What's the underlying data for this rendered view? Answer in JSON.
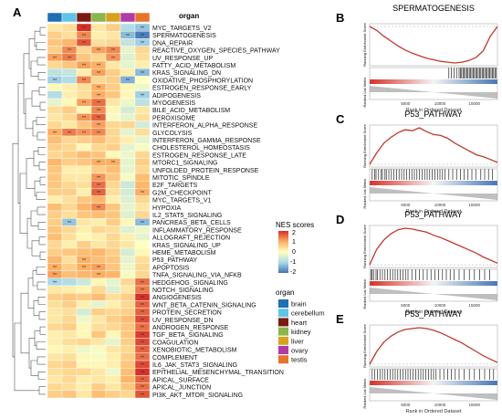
{
  "panel_labels": {
    "A": "A",
    "B": "B",
    "C": "C",
    "D": "D",
    "E": "E"
  },
  "heatmap": {
    "organ_header": "organ",
    "legend_title": "NES  scores",
    "legend_ticks": [
      "2",
      "1",
      "0",
      "-1",
      "-2"
    ],
    "organ_legend_title": "organ",
    "significance_mark": "**"
  },
  "colors": {
    "high": "#d73027",
    "mid_high": "#fdae61",
    "neutral": "#ffffbf",
    "mid_low": "#abd9e9",
    "low": "#4575b4",
    "gsea_curve": "#c0392b",
    "barcode": "#000000",
    "ranked_metric_fill": "#bfbfbf"
  },
  "chart_data": [
    {
      "type": "heatmap",
      "title": "",
      "columns": [
        "brain",
        "cerebellum",
        "heart",
        "kidney",
        "liver",
        "ovary",
        "testis"
      ],
      "column_colors": [
        "#1f6fb4",
        "#5fc4e8",
        "#7b1a12",
        "#8ab64b",
        "#d7a21e",
        "#b03aa6",
        "#e8732a"
      ],
      "rows": [
        "MYC_TARGETS_V2",
        "SPERMATOGENESIS",
        "DNA_REPAIR",
        "REACTIVE_OXYGEN_SPECIES_PATHWAY",
        "UV_RESPONSE_UP",
        "FATTY_ACID_METABOLISM",
        "KRAS_SIGNALING_DN",
        "OXIDATIVE_PHOSPHORYLATION",
        "ESTROGEN_RESPONSE_EARLY",
        "ADIPOGENESIS",
        "MYOGENESIS",
        "BILE_ACID_METABOLISM",
        "PEROXISOME",
        "INTERFERON_ALPHA_RESPONSE",
        "GLYCOLYSIS",
        "INTERFERON_GAMMA_RESPONSE",
        "CHOLESTEROL_HOMEOSTASIS",
        "ESTROGEN_RESPONSE_LATE",
        "MTORC1_SIGNALING",
        "UNFOLDED_PROTEIN_RESPONSE",
        "MITOTIC_SPINDLE",
        "E2F_TARGETS",
        "G2M_CHECKPOINT",
        "MYC_TARGETS_V1",
        "HYPOXIA",
        "IL2_STAT5_SIGNALING",
        "PANCREAS_BETA_CELLS",
        "INFLAMMATORY_RESPONSE",
        "ALLOGRAFT_REJECTION",
        "KRAS_SIGNALING_UP",
        "HEME_METABOLISM",
        "P53_PATHWAY",
        "APOPTOSIS",
        "TNFA_SIGNALING_VIA_NFKB",
        "HEDGEHOG_SIGNALING",
        "NOTCH_SIGNALING",
        "ANGIOGENESIS",
        "WNT_BETA_CATENIN_SIGNALING",
        "PROTEIN_SECRETION",
        "UV_RESPONSE_DN",
        "ANDROGEN_RESPONSE",
        "TGF_BETA_SIGNALING",
        "COAGULATION",
        "XENOBIOTIC_METABOLISM",
        "COMPLEMENT",
        "IL6_JAK_STAT3_SIGNALING",
        "EPITHELIAL_MESENCHYMAL_TRANSITION",
        "APICAL_SURFACE",
        "APICAL_JUNCTION",
        "PI3K_AKT_MTOR_SIGNALING"
      ],
      "values": [
        [
          0.3,
          0.4,
          2.0,
          0.3,
          0.6,
          -0.9,
          -1.2
        ],
        [
          0.6,
          0.4,
          1.3,
          0.2,
          0.3,
          -1.3,
          -1.9
        ],
        [
          0.7,
          0.9,
          1.7,
          0.4,
          0.5,
          -0.7,
          -1.1
        ],
        [
          0.6,
          1.3,
          0.5,
          1.1,
          1.3,
          -0.3,
          0.5
        ],
        [
          1.1,
          1.4,
          0.7,
          0.5,
          1.2,
          -0.4,
          0.4
        ],
        [
          0.5,
          0.7,
          1.1,
          1.0,
          0.3,
          -0.3,
          0.2
        ],
        [
          -0.8,
          -0.7,
          0.2,
          1.1,
          0.6,
          0.2,
          -1.3
        ],
        [
          -1.1,
          -0.9,
          1.3,
          0.5,
          0.6,
          -1.4,
          0.0
        ],
        [
          0.1,
          0.2,
          0.4,
          1.0,
          0.6,
          0.1,
          -0.2
        ],
        [
          -0.9,
          0.2,
          0.4,
          1.0,
          0.7,
          0.1,
          -1.1
        ],
        [
          -0.3,
          0.1,
          1.1,
          1.5,
          0.3,
          -0.2,
          -0.8
        ],
        [
          0.4,
          0.6,
          0.1,
          1.3,
          0.1,
          -0.5,
          0.3
        ],
        [
          0.3,
          0.5,
          1.2,
          1.6,
          -0.1,
          -0.3,
          0.4
        ],
        [
          0.5,
          0.3,
          0.7,
          1.1,
          0.5,
          0.5,
          -0.5
        ],
        [
          1.0,
          1.4,
          1.2,
          1.3,
          0.5,
          -0.3,
          0.4
        ],
        [
          0.8,
          0.5,
          0.6,
          0.8,
          0.5,
          0.2,
          -0.3
        ],
        [
          0.6,
          0.5,
          0.1,
          0.5,
          0.6,
          -0.3,
          -0.1
        ],
        [
          0.5,
          0.6,
          0.8,
          0.7,
          0.1,
          -0.2,
          0.5
        ],
        [
          0.9,
          0.6,
          0.7,
          1.0,
          1.0,
          -0.3,
          0.6
        ],
        [
          0.7,
          0.2,
          0.2,
          0.6,
          0.8,
          -0.3,
          0.5
        ],
        [
          0.7,
          0.3,
          0.3,
          1.2,
          0.7,
          -0.1,
          0.8
        ],
        [
          0.7,
          0.5,
          0.4,
          1.5,
          0.5,
          -0.6,
          0.9
        ],
        [
          0.6,
          0.6,
          0.2,
          1.6,
          0.4,
          -0.5,
          1.0
        ],
        [
          0.2,
          0.4,
          0.7,
          0.9,
          0.2,
          -0.4,
          0.5
        ],
        [
          0.8,
          0.5,
          0.9,
          1.3,
          0.7,
          -0.3,
          0.3
        ],
        [
          0.6,
          0.4,
          0.7,
          0.8,
          0.7,
          -0.4,
          0.5
        ],
        [
          0.6,
          -1.2,
          0.3,
          0.2,
          0.6,
          0.1,
          -1.3
        ],
        [
          0.7,
          0.5,
          0.2,
          0.5,
          0.4,
          -0.4,
          -0.2
        ],
        [
          0.8,
          0.4,
          0.1,
          0.2,
          0.5,
          0.2,
          -0.3
        ],
        [
          0.5,
          0.2,
          0.6,
          0.3,
          0.5,
          0.3,
          0.0
        ],
        [
          0.6,
          0.7,
          0.8,
          0.9,
          0.6,
          -0.5,
          0.1
        ],
        [
          0.9,
          0.4,
          1.0,
          0.8,
          0.7,
          -0.3,
          0.4
        ],
        [
          1.0,
          0.6,
          1.0,
          1.1,
          0.7,
          -0.2,
          0.5
        ],
        [
          1.1,
          0.8,
          0.9,
          1.0,
          0.9,
          -0.1,
          0.5
        ],
        [
          -1.0,
          -0.9,
          -0.6,
          0.1,
          -0.3,
          0.5,
          1.5
        ],
        [
          0.3,
          0.2,
          0.1,
          0.5,
          -0.4,
          0.3,
          1.4
        ],
        [
          0.6,
          0.7,
          0.6,
          0.8,
          0.4,
          0.6,
          2.0
        ],
        [
          0.4,
          0.6,
          0.2,
          -0.3,
          0.2,
          0.5,
          1.6
        ],
        [
          0.3,
          0.4,
          -0.5,
          0.6,
          0.5,
          0.6,
          1.6
        ],
        [
          0.3,
          0.5,
          -0.2,
          0.3,
          0.6,
          0.8,
          1.8
        ],
        [
          0.5,
          0.6,
          0.1,
          0.4,
          0.5,
          0.7,
          1.5
        ],
        [
          0.2,
          0.3,
          0.1,
          0.7,
          0.1,
          0.7,
          1.9
        ],
        [
          0.2,
          0.4,
          0.5,
          0.3,
          -0.3,
          0.6,
          1.8
        ],
        [
          0.1,
          0.2,
          -0.2,
          -0.1,
          0.3,
          0.5,
          1.6
        ],
        [
          0.3,
          0.4,
          0.1,
          -0.1,
          0.2,
          0.6,
          1.5
        ],
        [
          0.5,
          0.6,
          0.1,
          0.1,
          0.2,
          0.7,
          1.8
        ],
        [
          0.4,
          0.5,
          0.5,
          0.3,
          -0.2,
          0.8,
          2.0
        ],
        [
          0.3,
          0.5,
          0.2,
          0.3,
          0.2,
          0.9,
          1.6
        ],
        [
          0.5,
          0.4,
          0.2,
          0.6,
          0.3,
          0.7,
          1.5
        ],
        [
          0.6,
          0.7,
          0.3,
          0.8,
          0.6,
          0.5,
          1.7
        ]
      ],
      "colorbar_range": [
        -2,
        2
      ]
    },
    {
      "type": "line",
      "title": "SPERMATOGENESIS",
      "ylabel": "Running Enrichment Score",
      "ylabel2": "Ranked List Metric",
      "xlabel": "Rank in Ordered Dataset",
      "xticks": [
        "5000",
        "10000",
        "15000"
      ],
      "curve_y": [
        0.0,
        -0.05,
        -0.12,
        -0.18,
        -0.24,
        -0.29,
        -0.33,
        -0.36,
        -0.39,
        -0.41,
        -0.43,
        -0.44,
        -0.45,
        -0.44,
        -0.42,
        -0.38,
        -0.3,
        -0.12,
        0.0
      ],
      "barcode_positions": [
        0.62,
        0.64,
        0.66,
        0.68,
        0.7,
        0.71,
        0.72,
        0.73,
        0.74,
        0.75,
        0.76,
        0.77,
        0.78,
        0.79,
        0.8,
        0.81,
        0.82,
        0.83,
        0.84,
        0.85,
        0.86,
        0.87,
        0.88,
        0.89,
        0.9,
        0.91,
        0.92,
        0.93,
        0.94,
        0.95,
        0.96,
        0.97,
        0.98,
        0.99
      ]
    },
    {
      "type": "line",
      "title": "P53_PATHWAY",
      "ylabel": "Running Enrichment Score",
      "ylabel2": "Ranked List Metric",
      "xlabel": "Rank in Ordered Dataset",
      "xticks": [
        "5000",
        "10000",
        "15000"
      ],
      "curve_y": [
        0.0,
        0.12,
        0.22,
        0.28,
        0.33,
        0.36,
        0.35,
        0.38,
        0.34,
        0.31,
        0.3,
        0.27,
        0.22,
        0.18,
        0.14,
        0.1,
        0.08,
        0.05,
        0.02
      ],
      "barcode_positions": [
        0.02,
        0.04,
        0.05,
        0.07,
        0.09,
        0.1,
        0.12,
        0.13,
        0.15,
        0.17,
        0.19,
        0.21,
        0.23,
        0.25,
        0.27,
        0.29,
        0.31,
        0.33,
        0.35,
        0.37,
        0.39,
        0.41,
        0.43,
        0.45,
        0.47,
        0.49,
        0.51,
        0.53,
        0.55,
        0.57,
        0.59,
        0.62,
        0.65,
        0.68,
        0.71,
        0.74,
        0.77,
        0.8,
        0.83,
        0.87,
        0.9,
        0.93,
        0.96
      ]
    },
    {
      "type": "line",
      "title": "P53_PATHWAY",
      "ylabel": "Running Enrichment Score",
      "ylabel2": "Ranked List Metric",
      "xlabel": "Rank in Ordered Dataset",
      "xticks": [
        "5000",
        "10000",
        "15000"
      ],
      "curve_y": [
        0.0,
        0.2,
        0.32,
        0.4,
        0.45,
        0.47,
        0.46,
        0.44,
        0.42,
        0.38,
        0.35,
        0.31,
        0.27,
        0.23,
        0.19,
        0.15,
        0.1,
        0.06,
        0.02
      ],
      "barcode_positions": [
        0.01,
        0.02,
        0.03,
        0.05,
        0.06,
        0.08,
        0.1,
        0.12,
        0.14,
        0.16,
        0.18,
        0.2,
        0.22,
        0.24,
        0.26,
        0.28,
        0.3,
        0.33,
        0.36,
        0.39,
        0.42,
        0.45,
        0.48,
        0.51,
        0.54,
        0.57,
        0.6,
        0.63,
        0.66,
        0.7,
        0.74,
        0.78,
        0.82,
        0.86,
        0.9,
        0.94
      ]
    },
    {
      "type": "line",
      "title": "P53_PATHWAY",
      "ylabel": "Running Enrichment Score",
      "ylabel2": "Ranked List Metric",
      "xlabel": "Rank in Ordered Dataset",
      "xticks": [
        "5000",
        "10000",
        "15000"
      ],
      "curve_y": [
        0.0,
        0.15,
        0.26,
        0.33,
        0.38,
        0.41,
        0.42,
        0.43,
        0.42,
        0.4,
        0.37,
        0.33,
        0.29,
        0.25,
        0.2,
        0.15,
        0.1,
        0.06,
        0.02
      ],
      "barcode_positions": [
        0.02,
        0.04,
        0.06,
        0.08,
        0.1,
        0.12,
        0.14,
        0.16,
        0.18,
        0.2,
        0.22,
        0.24,
        0.26,
        0.28,
        0.3,
        0.32,
        0.34,
        0.36,
        0.38,
        0.4,
        0.42,
        0.44,
        0.46,
        0.48,
        0.5,
        0.52,
        0.55,
        0.58,
        0.61,
        0.64,
        0.67,
        0.7,
        0.74,
        0.78,
        0.82,
        0.86,
        0.9,
        0.94,
        0.97
      ]
    }
  ]
}
